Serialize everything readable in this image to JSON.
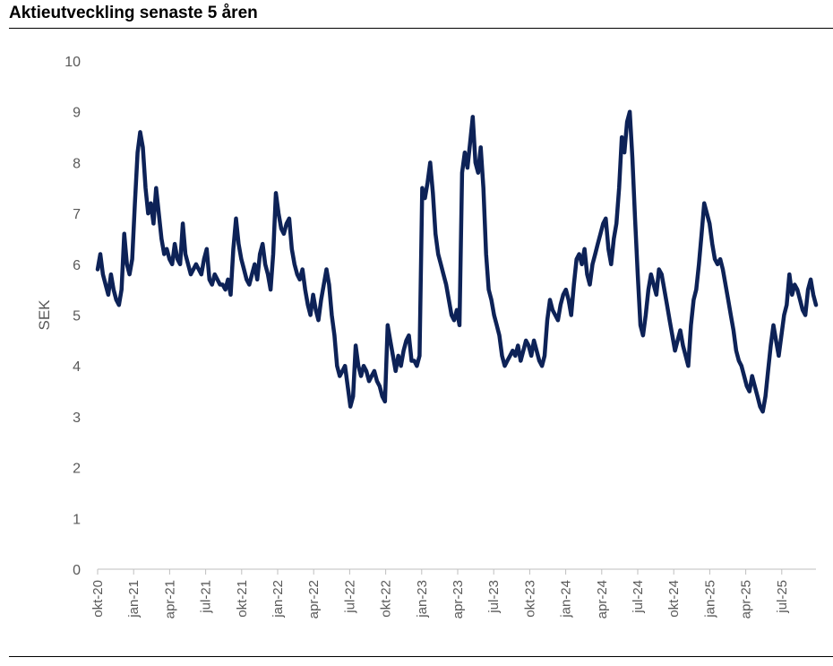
{
  "chart_data": {
    "type": "line",
    "title": "Aktieutveckling senaste 5 åren",
    "xlabel": "",
    "ylabel": "SEK",
    "ylim": [
      0,
      10
    ],
    "yticks": [
      0,
      1,
      2,
      3,
      4,
      5,
      6,
      7,
      8,
      9,
      10
    ],
    "xticks": [
      "okt-20",
      "jan-21",
      "apr-21",
      "jul-21",
      "okt-21",
      "jan-22",
      "apr-22",
      "jul-22",
      "okt-22",
      "jan-23",
      "apr-23",
      "jul-23",
      "okt-23",
      "jan-24",
      "apr-24",
      "jul-24",
      "okt-24",
      "jan-25",
      "apr-25",
      "jul-25"
    ],
    "line_color": "#0d2257",
    "series": [
      {
        "name": "SEK",
        "values": [
          5.9,
          6.2,
          5.8,
          5.6,
          5.4,
          5.8,
          5.5,
          5.3,
          5.2,
          5.5,
          6.6,
          6.0,
          5.8,
          6.1,
          7.2,
          8.2,
          8.6,
          8.3,
          7.5,
          7.0,
          7.2,
          6.8,
          7.5,
          7.0,
          6.5,
          6.2,
          6.3,
          6.1,
          6.0,
          6.4,
          6.1,
          6.0,
          6.8,
          6.2,
          6.0,
          5.8,
          5.9,
          6.0,
          5.9,
          5.8,
          6.1,
          6.3,
          5.7,
          5.6,
          5.8,
          5.7,
          5.6,
          5.6,
          5.5,
          5.7,
          5.4,
          6.3,
          6.9,
          6.4,
          6.1,
          5.9,
          5.7,
          5.6,
          5.8,
          6.0,
          5.7,
          6.2,
          6.4,
          6.0,
          5.8,
          5.5,
          6.2,
          7.4,
          7.0,
          6.7,
          6.6,
          6.8,
          6.9,
          6.3,
          6.0,
          5.8,
          5.7,
          5.9,
          5.5,
          5.2,
          5.0,
          5.4,
          5.1,
          4.9,
          5.3,
          5.6,
          5.9,
          5.6,
          5.0,
          4.6,
          4.0,
          3.8,
          3.9,
          4.0,
          3.6,
          3.2,
          3.4,
          4.4,
          4.0,
          3.8,
          4.0,
          3.9,
          3.7,
          3.8,
          3.9,
          3.7,
          3.6,
          3.4,
          3.3,
          4.8,
          4.5,
          4.2,
          3.9,
          4.2,
          4.0,
          4.3,
          4.5,
          4.6,
          4.1,
          4.1,
          4.0,
          4.2,
          7.5,
          7.3,
          7.6,
          8.0,
          7.4,
          6.6,
          6.2,
          6.0,
          5.8,
          5.6,
          5.3,
          5.0,
          4.9,
          5.1,
          4.8,
          7.8,
          8.2,
          7.9,
          8.4,
          8.9,
          8.0,
          7.8,
          8.3,
          7.5,
          6.2,
          5.5,
          5.3,
          5.0,
          4.8,
          4.6,
          4.2,
          4.0,
          4.1,
          4.2,
          4.3,
          4.2,
          4.4,
          4.1,
          4.3,
          4.5,
          4.4,
          4.2,
          4.5,
          4.3,
          4.1,
          4.0,
          4.2,
          4.9,
          5.3,
          5.1,
          5.0,
          4.9,
          5.2,
          5.4,
          5.5,
          5.3,
          5.0,
          5.6,
          6.1,
          6.2,
          6.0,
          6.3,
          5.8,
          5.6,
          6.0,
          6.2,
          6.4,
          6.6,
          6.8,
          6.9,
          6.3,
          6.0,
          6.5,
          6.8,
          7.5,
          8.5,
          8.2,
          8.8,
          9.0,
          8.1,
          6.9,
          5.8,
          4.8,
          4.6,
          5.0,
          5.5,
          5.8,
          5.6,
          5.4,
          5.9,
          5.8,
          5.5,
          5.2,
          4.9,
          4.6,
          4.3,
          4.5,
          4.7,
          4.4,
          4.2,
          4.0,
          4.8,
          5.3,
          5.5,
          6.0,
          6.6,
          7.2,
          7.0,
          6.8,
          6.4,
          6.1,
          6.0,
          6.1,
          5.9,
          5.6,
          5.3,
          5.0,
          4.7,
          4.3,
          4.1,
          4.0,
          3.8,
          3.6,
          3.5,
          3.8,
          3.6,
          3.4,
          3.2,
          3.1,
          3.4,
          3.9,
          4.4,
          4.8,
          4.5,
          4.2,
          4.6,
          5.0,
          5.2,
          5.8,
          5.4,
          5.6,
          5.5,
          5.3,
          5.1,
          5.0,
          5.5,
          5.7,
          5.4,
          5.2
        ]
      }
    ]
  }
}
